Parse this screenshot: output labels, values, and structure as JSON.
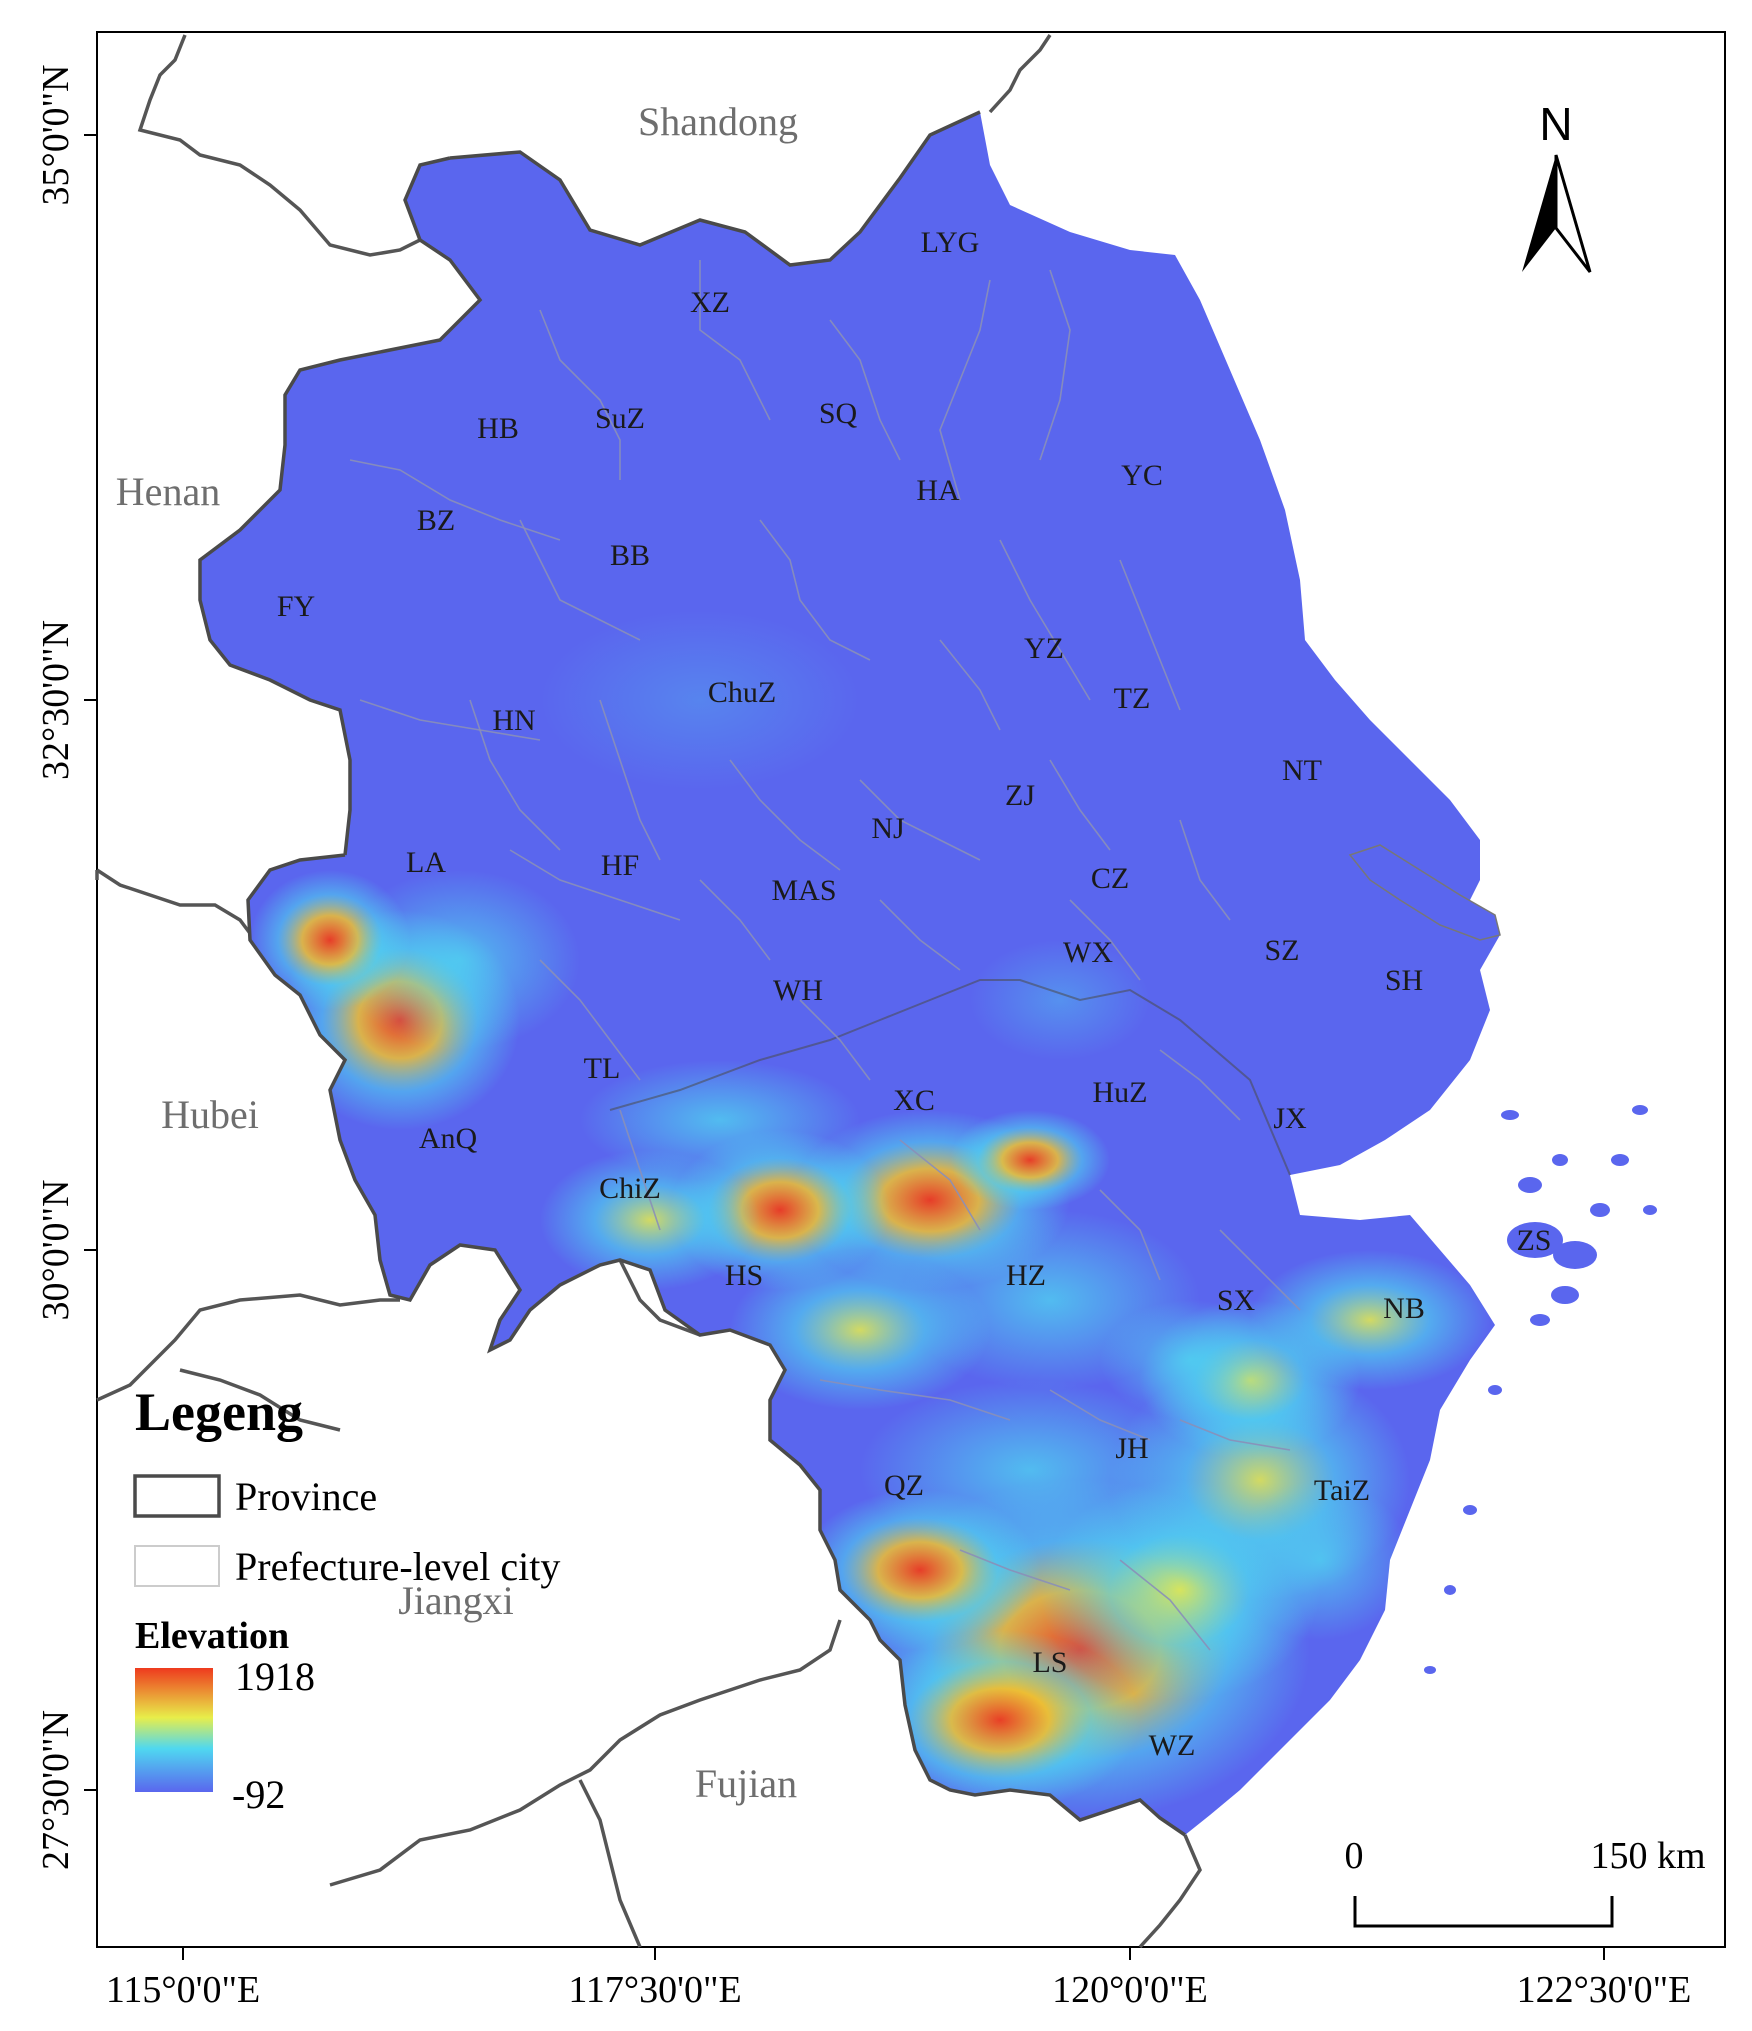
{
  "map": {
    "north_label": "N",
    "lon_labels": [
      "115°0'0\"E",
      "117°30'0\"E",
      "120°0'0\"E",
      "122°30'0\"E"
    ],
    "lat_labels": [
      "35°0'0\"N",
      "32°30'0\"N",
      "30°0'0\"N",
      "27°30'0\"N"
    ],
    "neighbor_provinces": [
      "Shandong",
      "Henan",
      "Hubei",
      "Jiangxi",
      "Fujian"
    ],
    "cities": [
      "LYG",
      "XZ",
      "SuZ",
      "HB",
      "SQ",
      "HA",
      "YC",
      "BZ",
      "BB",
      "FY",
      "YZ",
      "ChuZ",
      "TZ",
      "HN",
      "NT",
      "ZJ",
      "NJ",
      "LA",
      "HF",
      "MAS",
      "CZ",
      "WX",
      "SZ",
      "SH",
      "WH",
      "TL",
      "XC",
      "HuZ",
      "JX",
      "AnQ",
      "ChiZ",
      "ZS",
      "HS",
      "HZ",
      "SX",
      "NB",
      "JH",
      "QZ",
      "TaiZ",
      "LS",
      "WZ"
    ],
    "colors": {
      "low": "#5a66ee",
      "mid": "#4fd8f0",
      "mid2": "#e8ee4a",
      "high": "#ee3a1e",
      "province_border": "#4a4a4a",
      "city_border": "#c8c8c8"
    }
  },
  "legend": {
    "title": "Legeng",
    "province_label": "Province",
    "city_label": "Prefecture-level city",
    "elevation_title": "Elevation",
    "elevation_max": "1918",
    "elevation_min": "-92"
  },
  "scale_bar": {
    "start_label": "0",
    "end_label": "150 km"
  }
}
